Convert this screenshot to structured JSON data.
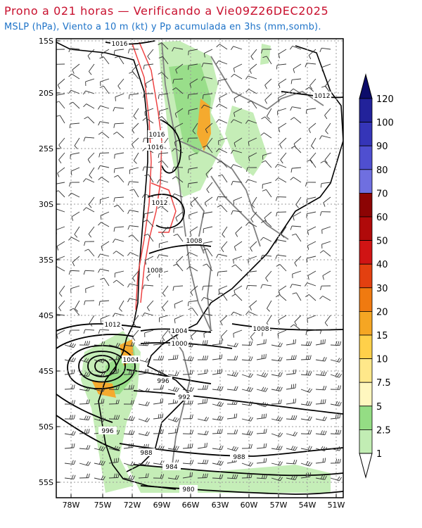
{
  "title": "Prono a 021 horas — Verificando a Vie09Z26DEC2025",
  "subtitle": "MSLP (hPa), Viento a 10 m (kt) y Pp acumulada en 3hs (mm,somb).",
  "lat_labels": [
    "15S",
    "20S",
    "25S",
    "30S",
    "35S",
    "40S",
    "45S",
    "50S",
    "55S"
  ],
  "lon_labels": [
    "78W",
    "75W",
    "72W",
    "69W",
    "66W",
    "63W",
    "60W",
    "57W",
    "54W",
    "51W"
  ],
  "colorbar_labels": [
    "1",
    "2.5",
    "5",
    "7.5",
    "10",
    "15",
    "20",
    "30",
    "40",
    "50",
    "60",
    "70",
    "80",
    "90",
    "100",
    "120"
  ],
  "colorbar_colors": [
    "#e6f7e0",
    "#c2edb4",
    "#94dd84",
    "#fff7bf",
    "#ffe88a",
    "#ffd04a",
    "#f5a623",
    "#f07a10",
    "#e34010",
    "#d01414",
    "#b00a0a",
    "#8c0404",
    "#6f6fe0",
    "#4f4fd0",
    "#3535b8",
    "#22229a",
    "#0c0c6a"
  ],
  "isobar_labels": [
    "1016",
    "1012",
    "1016",
    "1016",
    "1012",
    "1008",
    "1008",
    "1012",
    "1004",
    "1000",
    "1008",
    "1004",
    "996",
    "992",
    "996",
    "988",
    "988",
    "984",
    "980"
  ],
  "precip_legend_colors": {
    "light": "#c2edb4",
    "medium": "#94dd84",
    "heavy": "#f5a623"
  }
}
